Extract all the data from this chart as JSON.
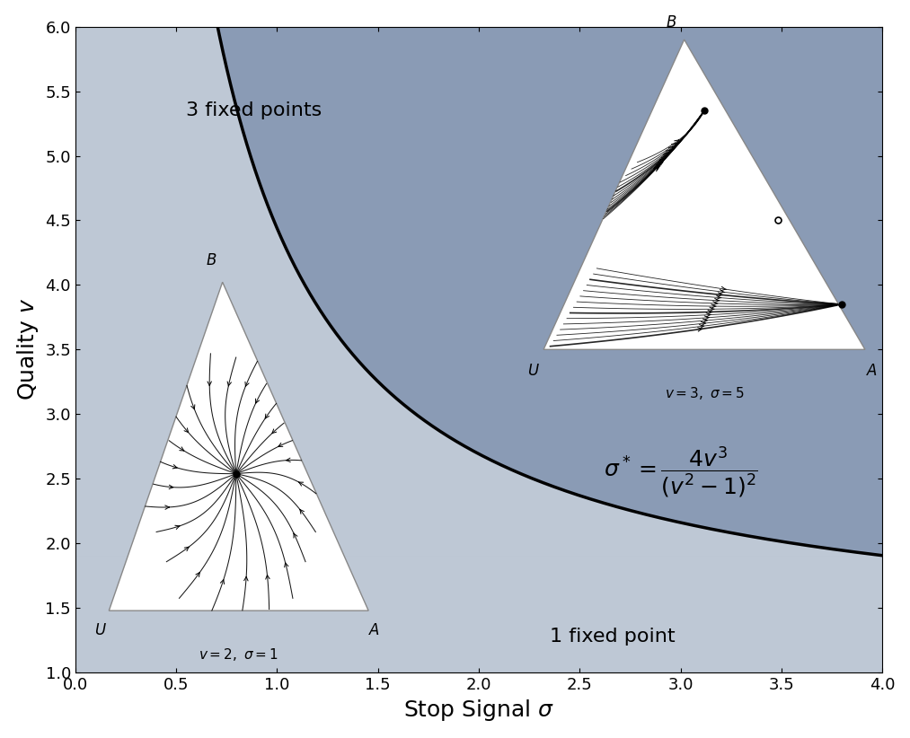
{
  "xlim": [
    0,
    4
  ],
  "ylim": [
    1,
    6
  ],
  "xlabel": "Stop Signal $\\sigma$",
  "ylabel": "Quality $v$",
  "xlabel_fontsize": 18,
  "ylabel_fontsize": 18,
  "tick_fontsize": 13,
  "xticks": [
    0,
    0.5,
    1.0,
    1.5,
    2.0,
    2.5,
    3.0,
    3.5,
    4.0
  ],
  "yticks": [
    1,
    1.5,
    2,
    2.5,
    3,
    3.5,
    4,
    4.5,
    5,
    5.5,
    6
  ],
  "bg_dark": "#8A9BB5",
  "bg_light": "#BEC8D5",
  "text_3fp": "3 fixed points",
  "text_1fp": "1 fixed point",
  "text_fontsize": 16
}
